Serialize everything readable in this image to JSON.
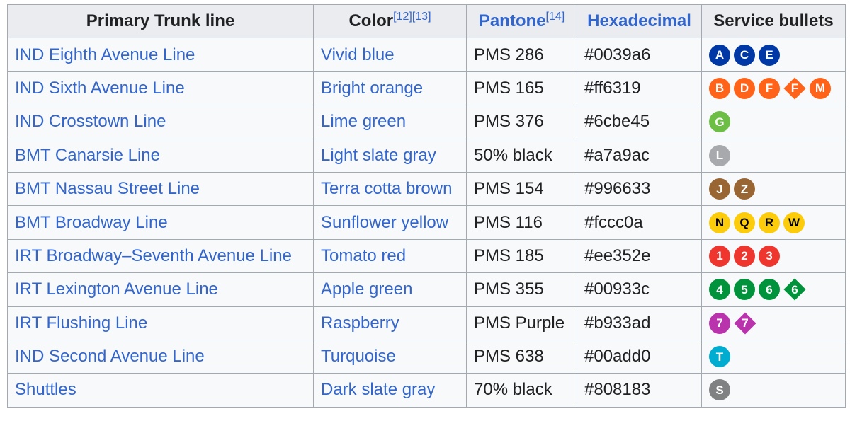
{
  "headers": {
    "trunk": "Primary Trunk line",
    "color": "Color",
    "color_refs": "[12][13]",
    "pantone": "Pantone",
    "pantone_ref": "[14]",
    "hex": "Hexadecimal",
    "bullets": "Service bullets"
  },
  "rows": [
    {
      "line": "IND Eighth Avenue Line",
      "color": "Vivid blue",
      "pantone": "PMS 286",
      "hex": "#0039a6",
      "text_color": "#ffffff",
      "bullets": [
        {
          "label": "A",
          "shape": "circle"
        },
        {
          "label": "C",
          "shape": "circle"
        },
        {
          "label": "E",
          "shape": "circle"
        }
      ]
    },
    {
      "line": "IND Sixth Avenue Line",
      "color": "Bright orange",
      "pantone": "PMS 165",
      "hex": "#ff6319",
      "text_color": "#ffffff",
      "bullets": [
        {
          "label": "B",
          "shape": "circle"
        },
        {
          "label": "D",
          "shape": "circle"
        },
        {
          "label": "F",
          "shape": "circle"
        },
        {
          "label": "F",
          "shape": "diamond"
        },
        {
          "label": "M",
          "shape": "circle"
        }
      ]
    },
    {
      "line": "IND Crosstown Line",
      "color": "Lime green",
      "pantone": "PMS 376",
      "hex": "#6cbe45",
      "text_color": "#ffffff",
      "bullets": [
        {
          "label": "G",
          "shape": "circle"
        }
      ]
    },
    {
      "line": "BMT Canarsie Line",
      "color": "Light slate gray",
      "pantone": "50% black",
      "hex": "#a7a9ac",
      "text_color": "#ffffff",
      "bullets": [
        {
          "label": "L",
          "shape": "circle"
        }
      ]
    },
    {
      "line": "BMT Nassau Street Line",
      "color": "Terra cotta brown",
      "pantone": "PMS 154",
      "hex": "#996633",
      "text_color": "#ffffff",
      "bullets": [
        {
          "label": "J",
          "shape": "circle"
        },
        {
          "label": "Z",
          "shape": "circle"
        }
      ]
    },
    {
      "line": "BMT Broadway Line",
      "color": "Sunflower yellow",
      "pantone": "PMS 116",
      "hex": "#fccc0a",
      "text_color": "#000000",
      "bullets": [
        {
          "label": "N",
          "shape": "circle"
        },
        {
          "label": "Q",
          "shape": "circle"
        },
        {
          "label": "R",
          "shape": "circle"
        },
        {
          "label": "W",
          "shape": "circle"
        }
      ]
    },
    {
      "line": "IRT Broadway–Seventh Avenue Line",
      "color": "Tomato red",
      "pantone": "PMS 185",
      "hex": "#ee352e",
      "text_color": "#ffffff",
      "bullets": [
        {
          "label": "1",
          "shape": "circle"
        },
        {
          "label": "2",
          "shape": "circle"
        },
        {
          "label": "3",
          "shape": "circle"
        }
      ]
    },
    {
      "line": "IRT Lexington Avenue Line",
      "color": "Apple green",
      "pantone": "PMS 355",
      "hex": "#00933c",
      "text_color": "#ffffff",
      "bullets": [
        {
          "label": "4",
          "shape": "circle"
        },
        {
          "label": "5",
          "shape": "circle"
        },
        {
          "label": "6",
          "shape": "circle"
        },
        {
          "label": "6",
          "shape": "diamond"
        }
      ]
    },
    {
      "line": "IRT Flushing Line",
      "color": "Raspberry",
      "pantone": "PMS Purple",
      "hex": "#b933ad",
      "text_color": "#ffffff",
      "bullets": [
        {
          "label": "7",
          "shape": "circle"
        },
        {
          "label": "7",
          "shape": "diamond"
        }
      ]
    },
    {
      "line": "IND Second Avenue Line",
      "color": "Turquoise",
      "pantone": "PMS 638",
      "hex": "#00add0",
      "text_color": "#ffffff",
      "bullets": [
        {
          "label": "T",
          "shape": "circle"
        }
      ]
    },
    {
      "line": "Shuttles",
      "color": "Dark slate gray",
      "pantone": "70% black",
      "hex": "#808183",
      "text_color": "#ffffff",
      "bullets": [
        {
          "label": "S",
          "shape": "circle"
        }
      ]
    }
  ]
}
